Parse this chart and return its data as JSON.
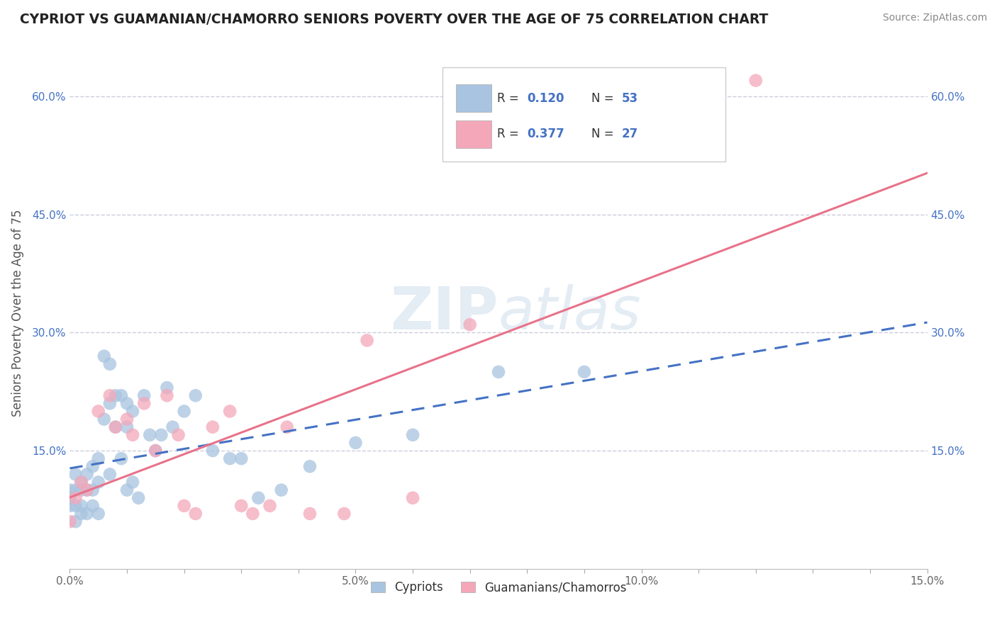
{
  "title": "CYPRIOT VS GUAMANIAN/CHAMORRO SENIORS POVERTY OVER THE AGE OF 75 CORRELATION CHART",
  "source": "Source: ZipAtlas.com",
  "ylabel": "Seniors Poverty Over the Age of 75",
  "xlim": [
    0.0,
    0.15
  ],
  "ylim": [
    0.0,
    0.65
  ],
  "xtick_labels": [
    "0.0%",
    "",
    "",
    "",
    "",
    "5.0%",
    "",
    "",
    "",
    "",
    "10.0%",
    "",
    "",
    "",
    "",
    "15.0%"
  ],
  "xtick_values": [
    0.0,
    0.01,
    0.02,
    0.03,
    0.04,
    0.05,
    0.06,
    0.07,
    0.08,
    0.09,
    0.1,
    0.11,
    0.12,
    0.13,
    0.14,
    0.15
  ],
  "ytick_labels": [
    "15.0%",
    "30.0%",
    "45.0%",
    "60.0%"
  ],
  "ytick_values": [
    0.15,
    0.3,
    0.45,
    0.6
  ],
  "cypriot_color": "#a8c4e0",
  "guam_color": "#f4a7b9",
  "cypriot_line_color": "#4472c4",
  "guam_line_color": "#e8728a",
  "legend_label1": "Cypriots",
  "legend_label2": "Guamanians/Chamorros",
  "watermark_zip": "ZIP",
  "watermark_atlas": "atlas",
  "background_color": "#ffffff",
  "grid_color": "#ccccdd",
  "cypriot_x": [
    0.0,
    0.0,
    0.0,
    0.001,
    0.001,
    0.001,
    0.001,
    0.002,
    0.002,
    0.002,
    0.002,
    0.003,
    0.003,
    0.003,
    0.004,
    0.004,
    0.004,
    0.005,
    0.005,
    0.005,
    0.006,
    0.006,
    0.007,
    0.007,
    0.007,
    0.008,
    0.008,
    0.009,
    0.009,
    0.01,
    0.01,
    0.01,
    0.011,
    0.011,
    0.012,
    0.013,
    0.014,
    0.015,
    0.016,
    0.017,
    0.018,
    0.02,
    0.022,
    0.025,
    0.028,
    0.03,
    0.033,
    0.037,
    0.042,
    0.05,
    0.06,
    0.075,
    0.09
  ],
  "cypriot_y": [
    0.1,
    0.09,
    0.08,
    0.12,
    0.1,
    0.08,
    0.06,
    0.11,
    0.1,
    0.08,
    0.07,
    0.12,
    0.1,
    0.07,
    0.13,
    0.1,
    0.08,
    0.14,
    0.11,
    0.07,
    0.27,
    0.19,
    0.26,
    0.21,
    0.12,
    0.22,
    0.18,
    0.22,
    0.14,
    0.21,
    0.18,
    0.1,
    0.2,
    0.11,
    0.09,
    0.22,
    0.17,
    0.15,
    0.17,
    0.23,
    0.18,
    0.2,
    0.22,
    0.15,
    0.14,
    0.14,
    0.09,
    0.1,
    0.13,
    0.16,
    0.17,
    0.25,
    0.25
  ],
  "guam_x": [
    0.0,
    0.001,
    0.002,
    0.003,
    0.005,
    0.007,
    0.008,
    0.01,
    0.011,
    0.013,
    0.015,
    0.017,
    0.019,
    0.02,
    0.022,
    0.025,
    0.028,
    0.03,
    0.032,
    0.035,
    0.038,
    0.042,
    0.048,
    0.052,
    0.06,
    0.07,
    0.12
  ],
  "guam_y": [
    0.06,
    0.09,
    0.11,
    0.1,
    0.2,
    0.22,
    0.18,
    0.19,
    0.17,
    0.21,
    0.15,
    0.22,
    0.17,
    0.08,
    0.07,
    0.18,
    0.2,
    0.08,
    0.07,
    0.08,
    0.18,
    0.07,
    0.07,
    0.29,
    0.09,
    0.31,
    0.62
  ]
}
